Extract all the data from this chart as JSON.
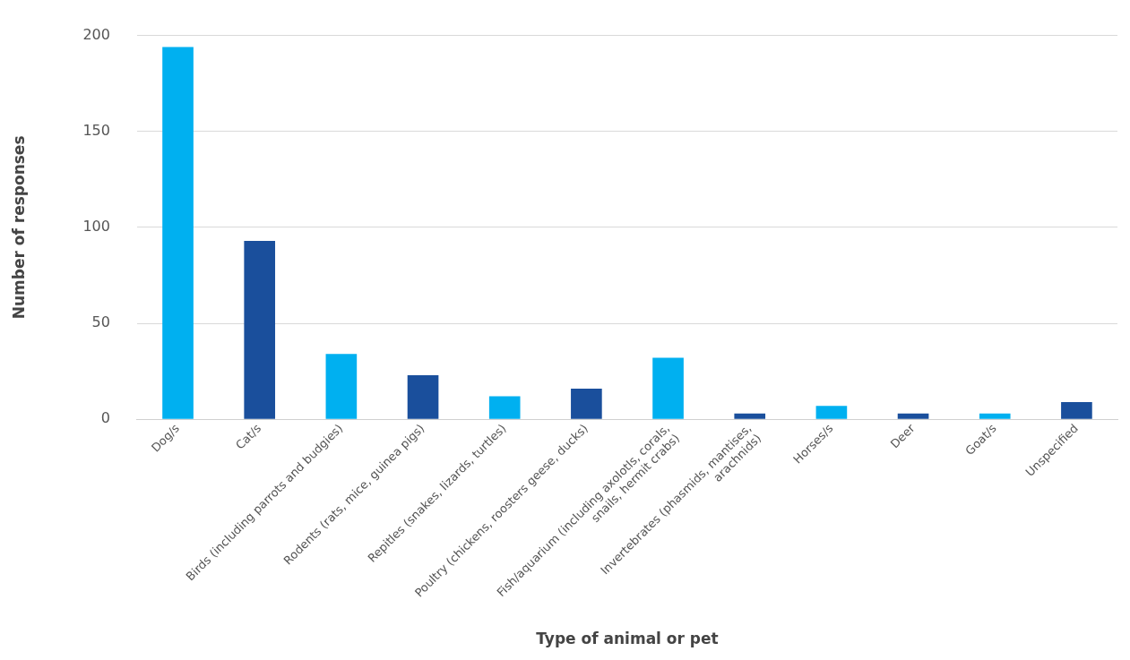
{
  "chart_data": {
    "type": "bar",
    "xlabel": "Type of animal or pet",
    "ylabel": "Number of responses",
    "categories": [
      "Dog/s",
      "Cat/s",
      "Birds (including parrots and budgies)",
      "Rodents (rats, mice, guinea pigs)",
      "Repitles (snakes, lizards, turtles)",
      "Poultry (chickens, roosters geese, ducks)",
      "Fish/aquarium (including axolotls, corals, snails, hermit crabs)",
      "Invertebrates (phasmids, mantises, arachnids)",
      "Horses/s",
      "Deer",
      "Goat/s",
      "Unspecified"
    ],
    "values": [
      194,
      93,
      34,
      23,
      12,
      16,
      32,
      3,
      7,
      3,
      3,
      9
    ],
    "colors": [
      "#00b0f0",
      "#1a4f9c",
      "#00b0f0",
      "#1a4f9c",
      "#00b0f0",
      "#1a4f9c",
      "#00b0f0",
      "#1a4f9c",
      "#00b0f0",
      "#1a4f9c",
      "#00b0f0",
      "#1a4f9c"
    ],
    "ylim": [
      0,
      200
    ],
    "yticks": [
      0,
      50,
      100,
      150,
      200
    ],
    "grid": "y",
    "legend": false
  }
}
